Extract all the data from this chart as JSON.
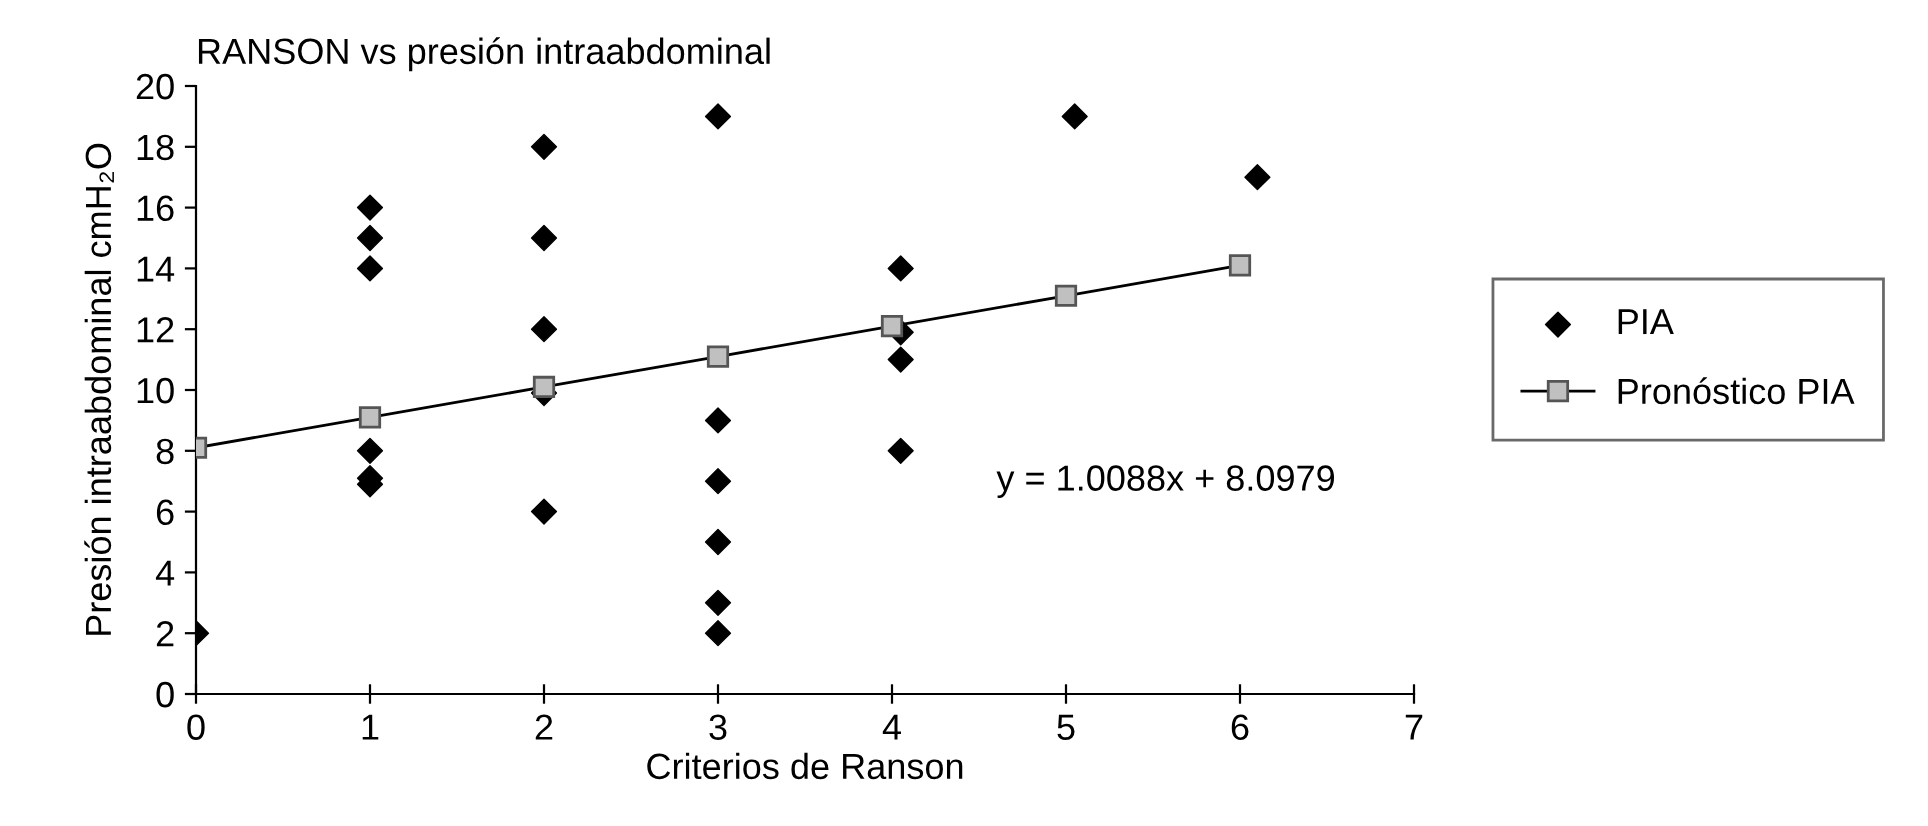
{
  "chart_data": {
    "type": "scatter",
    "title": "RANSON vs presión intraabdominal",
    "xlabel": "Criterios de Ranson",
    "ylabel": "Presión intraabdominal cmH₂O",
    "series": [
      {
        "name": "PIA",
        "type": "scatter",
        "marker": "diamond",
        "color": "#000000",
        "x": [
          0,
          1,
          1,
          1,
          1,
          1,
          1,
          2,
          2,
          2,
          2,
          2,
          3,
          3,
          3,
          3,
          3,
          3,
          4.05,
          4.05,
          4.05,
          4.05,
          5.05,
          6.1
        ],
        "values": [
          2,
          16,
          15,
          14,
          8,
          7.1,
          6.9,
          18,
          15,
          12,
          9.9,
          6,
          19,
          9,
          7,
          5,
          3,
          2,
          14,
          11.9,
          11,
          8,
          19,
          17
        ]
      },
      {
        "name": "Pronóstico PIA",
        "type": "line",
        "marker": "square",
        "color": "#c0c0c0",
        "x": [
          0,
          1,
          2,
          3,
          4,
          5,
          6
        ],
        "values": [
          8.1,
          9.1,
          10.1,
          11.1,
          12.1,
          13.1,
          14.1
        ]
      }
    ],
    "annotations": [
      "y = 1.0088x + 8.0979"
    ],
    "xlim": [
      0,
      7
    ],
    "xticks": [
      0,
      1,
      2,
      3,
      4,
      5,
      6,
      7
    ],
    "ylim": [
      0,
      20
    ],
    "yticks": [
      0,
      2,
      4,
      6,
      8,
      10,
      12,
      14,
      16,
      18,
      20
    ],
    "grid": false,
    "legend": "right"
  }
}
